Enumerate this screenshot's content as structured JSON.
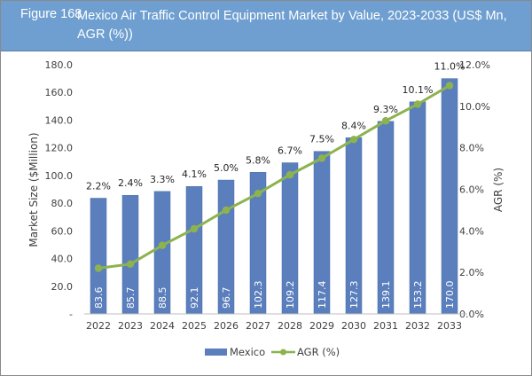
{
  "header": {
    "figure_number": "Figure 168",
    "title": "Mexico Air Traffic Control Equipment Market by Value, 2023-2033 (US$ Mn, AGR (%))"
  },
  "colors": {
    "header_bg": "#6f9fd0",
    "bar": "#5b7fbc",
    "line": "#8db34f"
  },
  "chart_data": {
    "type": "bar",
    "title": "Mexico Air Traffic Control Equipment Market by Value, 2023-2033 (US$ Mn, AGR (%))",
    "categories": [
      "2022",
      "2023",
      "2024",
      "2025",
      "2026",
      "2027",
      "2028",
      "2029",
      "2030",
      "2031",
      "2032",
      "2033"
    ],
    "series": [
      {
        "name": "Mexico",
        "type": "bar",
        "axis": "left",
        "values": [
          83.6,
          85.7,
          88.5,
          92.1,
          96.7,
          102.3,
          109.2,
          117.4,
          127.3,
          139.1,
          153.2,
          170.0
        ],
        "labels": [
          "83.6",
          "85.7",
          "88.5",
          "92.1",
          "96.7",
          "102.3",
          "109.2",
          "117.4",
          "127.3",
          "139.1",
          "153.2",
          "170.0"
        ]
      },
      {
        "name": "AGR (%)",
        "type": "line",
        "axis": "right",
        "values": [
          2.2,
          2.4,
          3.3,
          4.1,
          5.0,
          5.8,
          6.7,
          7.5,
          8.4,
          9.3,
          10.1,
          11.0
        ],
        "labels": [
          "2.2%",
          "2.4%",
          "3.3%",
          "4.1%",
          "5.0%",
          "5.8%",
          "6.7%",
          "7.5%",
          "8.4%",
          "9.3%",
          "10.1%",
          "11.0%"
        ]
      }
    ],
    "xlabel": "",
    "ylabel": "Market Size ($Million)",
    "y2label": "AGR (%)",
    "ylim": [
      0,
      180
    ],
    "y2lim": [
      0,
      12
    ],
    "yticks": [
      "-",
      "20.0",
      "40.0",
      "60.0",
      "80.0",
      "100.0",
      "120.0",
      "140.0",
      "160.0",
      "180.0"
    ],
    "y2ticks": [
      "0.0%",
      "2.0%",
      "4.0%",
      "6.0%",
      "8.0%",
      "10.0%",
      "12.0%"
    ],
    "grid": false,
    "legend": {
      "position": "bottom",
      "entries": [
        "Mexico",
        "AGR (%)"
      ]
    }
  }
}
